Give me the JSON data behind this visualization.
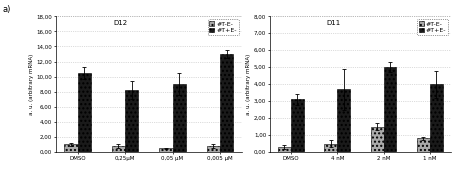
{
  "fig_label": "a)",
  "chart1": {
    "title": "D12",
    "ylabel": "a. u. (arbitrary mRNA)",
    "ylim": [
      0,
      18.0
    ],
    "yticks": [
      0.0,
      2.0,
      4.0,
      6.0,
      8.0,
      10.0,
      12.0,
      14.0,
      16.0,
      18.0
    ],
    "ytick_labels": [
      "0,00",
      "2,00",
      "4,00",
      "6,00",
      "8,00",
      "10,00",
      "12,00",
      "14,00",
      "16,00",
      "18,00"
    ],
    "categories": [
      "DMSO",
      "0,25μM",
      "0,05 μM",
      "0,005 μM"
    ],
    "bar1_values": [
      1.0,
      0.8,
      0.5,
      0.8
    ],
    "bar2_values": [
      10.5,
      8.2,
      9.0,
      13.0
    ],
    "bar1_errors": [
      0.2,
      0.2,
      0.1,
      0.2
    ],
    "bar2_errors": [
      0.8,
      1.2,
      1.5,
      0.5
    ],
    "legend1": "#T-E-",
    "legend2": "#T+E-",
    "bar1_color": "#aaaaaa",
    "bar2_color": "#1a1a1a",
    "bar_hatch1": "....",
    "bar_hatch2": "...."
  },
  "chart2": {
    "title": "D11",
    "ylabel": "a. u. (arbitrary mRNA)",
    "ylim": [
      0,
      8.0
    ],
    "yticks": [
      0.0,
      1.0,
      2.0,
      3.0,
      4.0,
      5.0,
      6.0,
      7.0,
      8.0
    ],
    "ytick_labels": [
      "0,00",
      "1,00",
      "2,00",
      "3,00",
      "4,00",
      "5,00",
      "6,00",
      "7,00",
      "8,00"
    ],
    "categories": [
      "DMSO",
      "4 nM",
      "2 nM",
      "1 nM"
    ],
    "bar1_values": [
      0.3,
      0.5,
      1.5,
      0.8
    ],
    "bar2_values": [
      3.1,
      3.7,
      5.0,
      4.0
    ],
    "bar1_errors": [
      0.1,
      0.2,
      0.2,
      0.1
    ],
    "bar2_errors": [
      0.3,
      1.2,
      0.3,
      0.8
    ],
    "legend1": "#T-E-",
    "legend2": "#T+E-",
    "bar1_color": "#aaaaaa",
    "bar2_color": "#1a1a1a",
    "bar_hatch1": "....",
    "bar_hatch2": "...."
  },
  "bg_color": "#ffffff",
  "grid_color": "#bbbbbb",
  "title_fontsize": 5,
  "tick_fontsize": 4,
  "label_fontsize": 4,
  "legend_fontsize": 4.5
}
